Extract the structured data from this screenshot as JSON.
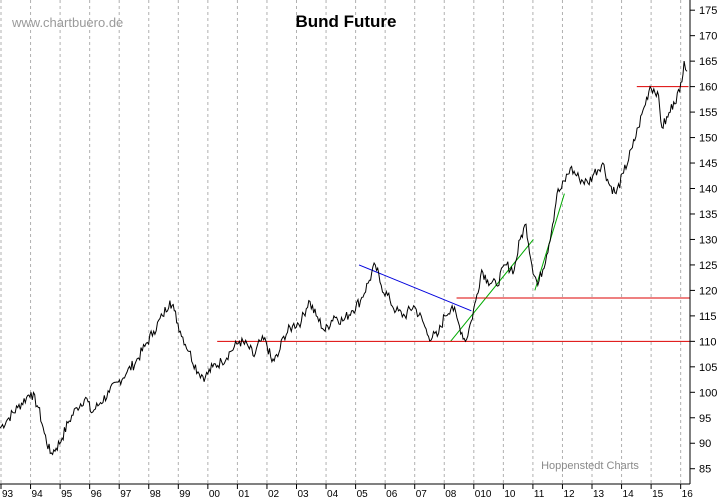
{
  "chart_data": {
    "type": "line",
    "title": "Bund Future",
    "watermark": "www.chartbuero.de",
    "credit": "Hoppenstedt Charts",
    "xlabel": "",
    "ylabel": "",
    "ylim": [
      82,
      177
    ],
    "xlim": [
      1993.0,
      2016.35
    ],
    "y_ticks": [
      85,
      90,
      95,
      100,
      105,
      110,
      115,
      120,
      125,
      130,
      135,
      140,
      145,
      150,
      155,
      160,
      165,
      170,
      175
    ],
    "x_ticks": [
      {
        "label": "93",
        "x": 1993
      },
      {
        "label": "94",
        "x": 1994
      },
      {
        "label": "95",
        "x": 1995
      },
      {
        "label": "96",
        "x": 1996
      },
      {
        "label": "97",
        "x": 1997
      },
      {
        "label": "98",
        "x": 1998
      },
      {
        "label": "99",
        "x": 1999
      },
      {
        "label": "00",
        "x": 2000
      },
      {
        "label": "01",
        "x": 2001
      },
      {
        "label": "02",
        "x": 2002
      },
      {
        "label": "03",
        "x": 2003
      },
      {
        "label": "04",
        "x": 2004
      },
      {
        "label": "05",
        "x": 2005
      },
      {
        "label": "06",
        "x": 2006
      },
      {
        "label": "07",
        "x": 2007
      },
      {
        "label": "08",
        "x": 2008
      },
      {
        "label": "010",
        "x": 2009
      },
      {
        "label": "10",
        "x": 2010
      },
      {
        "label": "11",
        "x": 2011
      },
      {
        "label": "12",
        "x": 2012
      },
      {
        "label": "13",
        "x": 2013
      },
      {
        "label": "14",
        "x": 2014
      },
      {
        "label": "15",
        "x": 2015
      },
      {
        "label": "16",
        "x": 2016
      }
    ],
    "grid": "vertical dashed",
    "y_axis_position": "right",
    "series": [
      {
        "color": "#000000",
        "x": [
          1993.0,
          1993.3,
          1993.6,
          1993.9,
          1994.05,
          1994.3,
          1994.5,
          1994.7,
          1994.9,
          1995.1,
          1995.3,
          1995.6,
          1995.9,
          1996.1,
          1996.4,
          1996.7,
          1997.0,
          1997.3,
          1997.6,
          1997.9,
          1998.2,
          1998.5,
          1998.75,
          1998.9,
          1999.1,
          1999.4,
          1999.7,
          1999.95,
          2000.2,
          2000.5,
          2000.8,
          2001.1,
          2001.4,
          2001.6,
          2001.8,
          2002.0,
          2002.2,
          2002.4,
          2002.6,
          2002.9,
          2003.2,
          2003.45,
          2003.7,
          2004.0,
          2004.3,
          2004.6,
          2004.9,
          2005.2,
          2005.5,
          2005.7,
          2005.9,
          2006.2,
          2006.4,
          2006.7,
          2007.0,
          2007.3,
          2007.5,
          2007.8,
          2008.05,
          2008.3,
          2008.55,
          2008.75,
          2008.95,
          2009.1,
          2009.3,
          2009.5,
          2009.8,
          2010.1,
          2010.4,
          2010.6,
          2010.8,
          2011.0,
          2011.2,
          2011.5,
          2011.7,
          2011.85,
          2012.0,
          2012.3,
          2012.6,
          2012.9,
          2013.1,
          2013.4,
          2013.6,
          2013.85,
          2014.1,
          2014.4,
          2014.6,
          2014.8,
          2015.0,
          2015.25,
          2015.4,
          2015.6,
          2015.8,
          2016.0,
          2016.15,
          2016.25
        ],
        "values": [
          93,
          95,
          97,
          99,
          100,
          97,
          92,
          88,
          89,
          91,
          94,
          97,
          99,
          96,
          98,
          100,
          102,
          104,
          106,
          109,
          112,
          115,
          118,
          116,
          112,
          108,
          104,
          103,
          105,
          106,
          108,
          110,
          109,
          107,
          110,
          110,
          106,
          107,
          111,
          113,
          114,
          118,
          115,
          112,
          115,
          114,
          116,
          118,
          122,
          125,
          121,
          118,
          116,
          115,
          117,
          114,
          111,
          111,
          115,
          117,
          113,
          110,
          114,
          118,
          124,
          122,
          121,
          125,
          124,
          130,
          133,
          125,
          121,
          127,
          133,
          139,
          140,
          144,
          142,
          141,
          143,
          145,
          141,
          139,
          143,
          148,
          152,
          156,
          160,
          159,
          152,
          154,
          157,
          159,
          165,
          163
        ]
      }
    ],
    "annotations": [
      {
        "type": "trendline",
        "color": "#0000dd",
        "x": [
          2005.15,
          2008.95
        ],
        "y": [
          125,
          116
        ]
      },
      {
        "type": "trendline",
        "color": "#00aa00",
        "x": [
          2008.25,
          2011.05
        ],
        "y": [
          110,
          130
        ]
      },
      {
        "type": "trendline",
        "color": "#00aa00",
        "x": [
          2011.1,
          2012.1
        ],
        "y": [
          120,
          139
        ]
      },
      {
        "type": "hline",
        "color": "#dd0000",
        "y": 110,
        "x": [
          2000.35,
          2016.35
        ]
      },
      {
        "type": "hline",
        "color": "#dd0000",
        "y": 118.5,
        "x": [
          2008.45,
          2016.35
        ]
      },
      {
        "type": "hline",
        "color": "#dd0000",
        "y": 160,
        "x": [
          2014.55,
          2016.3
        ]
      }
    ]
  }
}
